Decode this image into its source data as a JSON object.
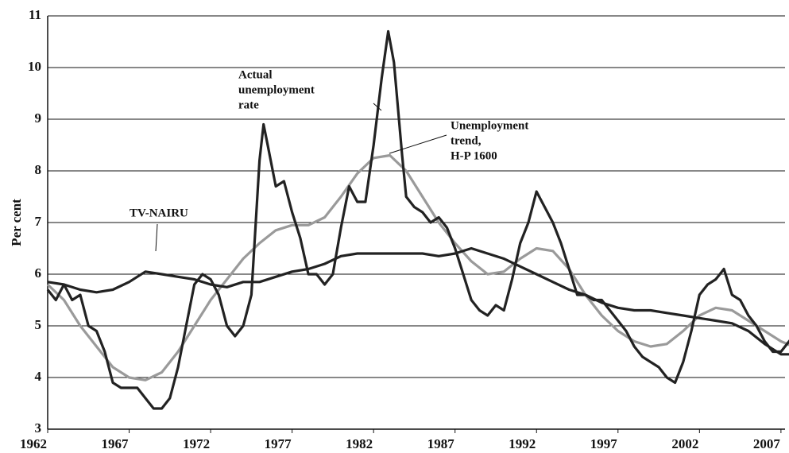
{
  "chart_data": {
    "type": "line",
    "y_label": "Per cent",
    "xlim": [
      1962,
      2007.25
    ],
    "ylim": [
      3,
      11
    ],
    "xticks": [
      1962,
      1967,
      1972,
      1977,
      1982,
      1987,
      1992,
      1997,
      2002,
      2007
    ],
    "yticks": [
      3,
      4,
      5,
      6,
      7,
      8,
      9,
      10,
      11
    ],
    "grid": true,
    "annotations": [
      {
        "lines": [
          "Actual",
          "unemployment",
          "rate"
        ]
      },
      {
        "lines": [
          "Unemployment",
          "trend,",
          "H-P 1600"
        ]
      },
      {
        "lines": [
          "TV-NAIRU"
        ]
      }
    ],
    "series": [
      {
        "color": "#222222",
        "x": [
          1962,
          1962.5,
          1963,
          1963.5,
          1964,
          1964.5,
          1965,
          1965.5,
          1966,
          1966.5,
          1967,
          1967.5,
          1968,
          1968.5,
          1969,
          1969.5,
          1970,
          1970.5,
          1971,
          1971.5,
          1972,
          1972.5,
          1973,
          1973.5,
          1974,
          1974.5,
          1975,
          1975.25,
          1975.5,
          1976,
          1976.5,
          1977,
          1977.5,
          1978,
          1978.5,
          1979,
          1979.5,
          1980,
          1980.5,
          1981,
          1981.5,
          1982,
          1982.5,
          1982.9,
          1983.25,
          1983.75,
          1984,
          1984.5,
          1985,
          1985.5,
          1986,
          1986.5,
          1987,
          1987.5,
          1988,
          1988.5,
          1989,
          1989.5,
          1990,
          1990.5,
          1991,
          1991.5,
          1992,
          1992.5,
          1993,
          1993.5,
          1994,
          1994.5,
          1995,
          1995.5,
          1996,
          1996.5,
          1997,
          1997.5,
          1998,
          1998.5,
          1999,
          1999.5,
          2000,
          2000.5,
          2001,
          2001.5,
          2002,
          2002.5,
          2003,
          2003.5,
          2004,
          2004.5,
          2005,
          2005.5,
          2006,
          2006.5,
          2007,
          2007.5,
          2007.75
        ],
        "values": [
          5.7,
          5.5,
          5.8,
          5.5,
          5.6,
          5.0,
          4.9,
          4.5,
          3.9,
          3.8,
          3.8,
          3.8,
          3.6,
          3.4,
          3.4,
          3.6,
          4.2,
          5.0,
          5.8,
          6.0,
          5.9,
          5.6,
          5.0,
          4.8,
          5.0,
          5.6,
          8.2,
          8.9,
          8.5,
          7.7,
          7.8,
          7.2,
          6.7,
          6.0,
          6.0,
          5.8,
          6.0,
          6.9,
          7.7,
          7.4,
          7.4,
          8.5,
          9.8,
          10.7,
          10.1,
          8.3,
          7.5,
          7.3,
          7.2,
          7.0,
          7.1,
          6.9,
          6.5,
          6.0,
          5.5,
          5.3,
          5.2,
          5.4,
          5.3,
          5.9,
          6.6,
          7.0,
          7.6,
          7.3,
          7.0,
          6.6,
          6.1,
          5.6,
          5.6,
          5.5,
          5.5,
          5.3,
          5.1,
          4.9,
          4.6,
          4.4,
          4.3,
          4.2,
          4.0,
          3.9,
          4.3,
          4.9,
          5.6,
          5.8,
          5.9,
          6.1,
          5.6,
          5.5,
          5.2,
          5.0,
          4.7,
          4.5,
          4.5,
          4.7,
          4.8
        ]
      },
      {
        "color": "#9a9a9a",
        "x": [
          1962,
          1963,
          1964,
          1965,
          1966,
          1967,
          1968,
          1969,
          1970,
          1971,
          1972,
          1973,
          1974,
          1975,
          1976,
          1977,
          1978,
          1979,
          1980,
          1981,
          1982,
          1983,
          1984,
          1985,
          1986,
          1987,
          1988,
          1989,
          1990,
          1991,
          1992,
          1993,
          1994,
          1995,
          1996,
          1997,
          1998,
          1999,
          2000,
          2001,
          2002,
          2003,
          2004,
          2005,
          2006,
          2007,
          2007.75
        ],
        "values": [
          5.8,
          5.5,
          5.0,
          4.6,
          4.2,
          4.0,
          3.95,
          4.1,
          4.5,
          5.0,
          5.5,
          5.9,
          6.3,
          6.6,
          6.85,
          6.95,
          6.95,
          7.1,
          7.5,
          7.95,
          8.25,
          8.3,
          8.0,
          7.5,
          7.0,
          6.6,
          6.25,
          6.0,
          6.05,
          6.3,
          6.5,
          6.45,
          6.1,
          5.6,
          5.2,
          4.9,
          4.7,
          4.6,
          4.65,
          4.9,
          5.2,
          5.35,
          5.3,
          5.1,
          4.9,
          4.7,
          4.6
        ]
      },
      {
        "color": "#222222",
        "x": [
          1962,
          1963,
          1964,
          1965,
          1966,
          1967,
          1968,
          1969,
          1970,
          1971,
          1972,
          1973,
          1974,
          1975,
          1976,
          1977,
          1978,
          1979,
          1980,
          1981,
          1982,
          1983,
          1984,
          1985,
          1986,
          1987,
          1988,
          1989,
          1990,
          1991,
          1992,
          1993,
          1994,
          1995,
          1996,
          1997,
          1998,
          1999,
          2000,
          2001,
          2002,
          2003,
          2004,
          2005,
          2006,
          2007,
          2007.75
        ],
        "values": [
          5.85,
          5.8,
          5.7,
          5.65,
          5.7,
          5.85,
          6.05,
          6.0,
          5.95,
          5.9,
          5.8,
          5.75,
          5.85,
          5.85,
          5.95,
          6.05,
          6.1,
          6.2,
          6.35,
          6.4,
          6.4,
          6.4,
          6.4,
          6.4,
          6.35,
          6.4,
          6.5,
          6.4,
          6.3,
          6.15,
          6.0,
          5.85,
          5.7,
          5.6,
          5.45,
          5.35,
          5.3,
          5.3,
          5.25,
          5.2,
          5.15,
          5.1,
          5.05,
          4.9,
          4.65,
          4.45,
          4.45
        ]
      }
    ]
  }
}
